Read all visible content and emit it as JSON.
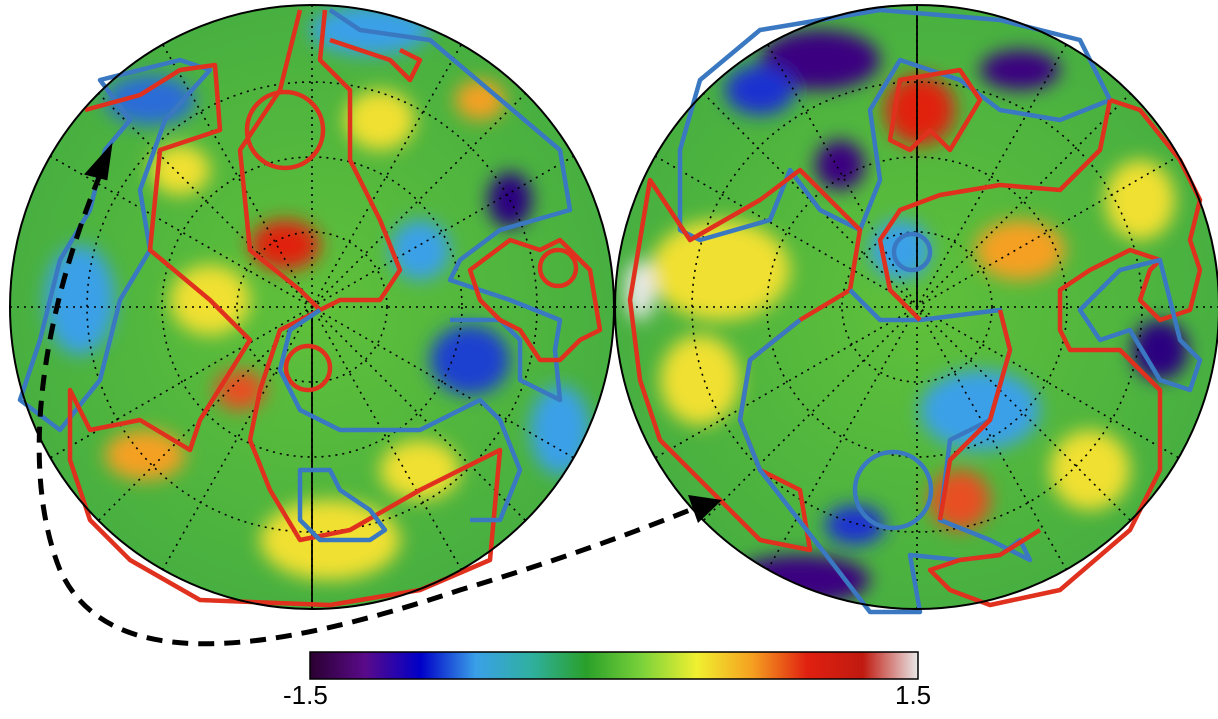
{
  "colorbar": {
    "min_label": "-1.5",
    "max_label": "1.5",
    "stops": [
      "#2a0030",
      "#5a0a8a",
      "#0000c8",
      "#3aa0e8",
      "#2fb0a0",
      "#2aa02a",
      "#7ad23a",
      "#f0f030",
      "#f5a020",
      "#e02010",
      "#c01a10",
      "#e8e8e8"
    ]
  },
  "colors": {
    "region_red": "#e0301e",
    "region_blue": "#3a78c2",
    "arrow": "#000000",
    "grid": "#000000"
  }
}
